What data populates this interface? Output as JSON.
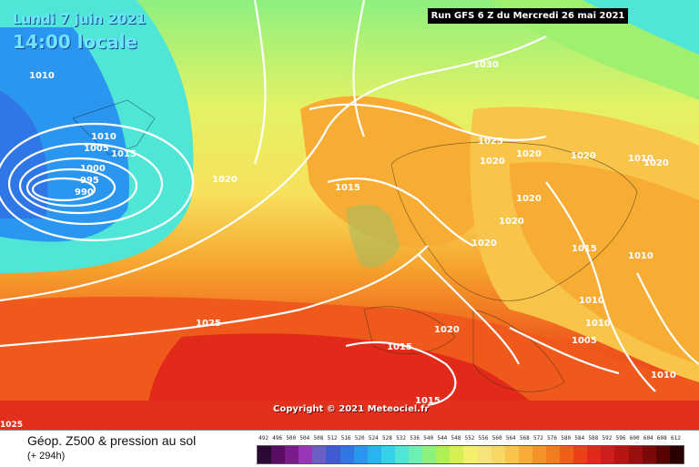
{
  "map": {
    "date_label": "Lundi 7 juin 2021",
    "time_label": "14:00 locale",
    "run_info": "Run GFS 6 Z du Mercredi 26 mai 2021",
    "copyright": "Copyright © 2021 Meteociel.fr",
    "corner_value": "1025",
    "pressure_labels": [
      "1030",
      "1025",
      "1020",
      "1020",
      "1020",
      "1020",
      "1020",
      "1015",
      "1020",
      "1020",
      "1015",
      "1010",
      "1010",
      "1010",
      "1010",
      "1005",
      "1010",
      "1020",
      "1015",
      "1015",
      "1025",
      "1010",
      "1005",
      "1000",
      "995",
      "990",
      "1010",
      "1015",
      "1020",
      "1015"
    ]
  },
  "legend": {
    "title": "Géop. Z500 & pression au sol",
    "subtitle": "(+ 294h)",
    "scale_values": [
      "492",
      "496",
      "500",
      "504",
      "508",
      "512",
      "516",
      "520",
      "524",
      "528",
      "532",
      "536",
      "540",
      "544",
      "548",
      "552",
      "556",
      "560",
      "564",
      "568",
      "572",
      "576",
      "580",
      "584",
      "588",
      "592",
      "596",
      "600",
      "604",
      "608",
      "612"
    ],
    "scale_colors": [
      "#2a0a34",
      "#5a0e63",
      "#7c1c8c",
      "#9a34b8",
      "#6a5fc4",
      "#3f5ad2",
      "#2f76e6",
      "#2a96f0",
      "#26b6ef",
      "#33d2ea",
      "#4fe6d8",
      "#6cf0b4",
      "#8cf27c",
      "#b0f050",
      "#d6f050",
      "#f3f06a",
      "#f6e47a",
      "#f8d864",
      "#f8c44a",
      "#f7ad34",
      "#f59426",
      "#f37c1c",
      "#f15e18",
      "#ec4018",
      "#e22a1a",
      "#cf1c1c",
      "#b81414",
      "#9c0e0e",
      "#7c0808",
      "#580404",
      "#2c0000"
    ]
  }
}
